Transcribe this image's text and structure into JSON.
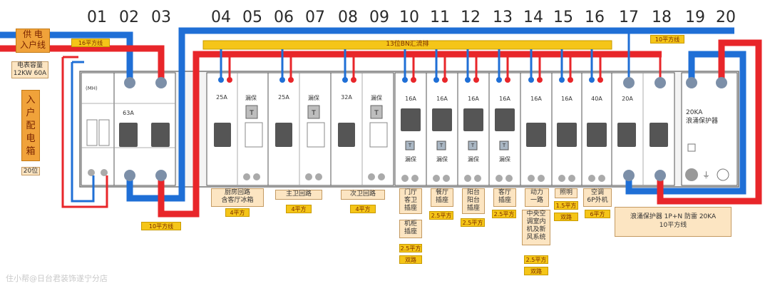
{
  "positions": [
    "01",
    "02",
    "03",
    "04",
    "05",
    "06",
    "07",
    "08",
    "09",
    "10",
    "11",
    "12",
    "13",
    "14",
    "15",
    "16",
    "17",
    "18",
    "19",
    "20"
  ],
  "inlet_label_lines": [
    "供 电",
    "入户线"
  ],
  "inlet_cable": "16平方线",
  "meter_info_lines": [
    "电表容量",
    "12KW 60A"
  ],
  "box_title": "入户配电箱",
  "box_size": "20位",
  "busbar_label": "13位BN汇流排",
  "spd_cable_top": "10平方线",
  "main_out_cable": "10平方线",
  "modules": {
    "main_small": "(MH)",
    "main_rating": "63A",
    "m1": {
      "rating": "25A",
      "leak": "漏保",
      "leak_t": "T"
    },
    "m2": {
      "rating": "25A",
      "leak": "漏保",
      "leak_t": "T"
    },
    "m3": {
      "rating": "32A",
      "leak": "漏保",
      "leak_t": "T"
    },
    "b10": {
      "rating": "16A",
      "leak": "漏保",
      "t": "T"
    },
    "b11": {
      "rating": "16A",
      "leak": "漏保",
      "t": "T"
    },
    "b12": {
      "rating": "16A",
      "leak": "漏保",
      "t": "T"
    },
    "b13": {
      "rating": "16A",
      "leak": "漏保",
      "t": "T"
    },
    "b14": {
      "rating": "16A"
    },
    "b15": {
      "rating": "16A"
    },
    "b16": {
      "rating": "40A"
    },
    "b17": {
      "rating": "20A"
    },
    "spd_lines": [
      "20KA",
      "浪涌保护器"
    ]
  },
  "circuits": {
    "c1_lines": [
      "厨房回路",
      "含客厅冰箱"
    ],
    "c1_cable": "4平方",
    "c2": "主卫回路",
    "c2_cable": "4平方",
    "c3": "次卫回路",
    "c3_cable": "4平方",
    "c10_lines": [
      "门厅",
      "客卫",
      "插座"
    ],
    "c10_cable": "2.5平方",
    "c10b_lines": [
      "机柜",
      "插座"
    ],
    "c10b_cable": "2.5平方",
    "c10b_spare": "双路",
    "c11_lines": [
      "餐厅",
      "插座"
    ],
    "c11_cable": "2.5平方",
    "c12_lines": [
      "阳台",
      "阳台",
      "插座"
    ],
    "c12_cable": "2.5平方",
    "c13_lines": [
      "客厅",
      "插座"
    ],
    "c13_cable": "2.5平方",
    "c14_lines": [
      "动力",
      "一路"
    ],
    "c14b_lines": [
      "中央空",
      "调室内",
      "机及新",
      "风系统"
    ],
    "c14b_cable": "2.5平方",
    "c14b_spare": "双路",
    "c15": "照明",
    "c15_cable": "1.5平方",
    "c15_spare": "双路",
    "c16_lines": [
      "空调",
      "6P外机"
    ],
    "c16_cable": "6平方",
    "c17_lines": [
      "浪涌保护器 1P+N 防雷 20KA",
      "10平方线"
    ]
  },
  "watermark": "住小帮@日台君装饰遂宁分店",
  "colors": {
    "live": "#e8262a",
    "neutral": "#1f6fd6",
    "busbar": "#f5c518",
    "label": "#fce5c2"
  }
}
